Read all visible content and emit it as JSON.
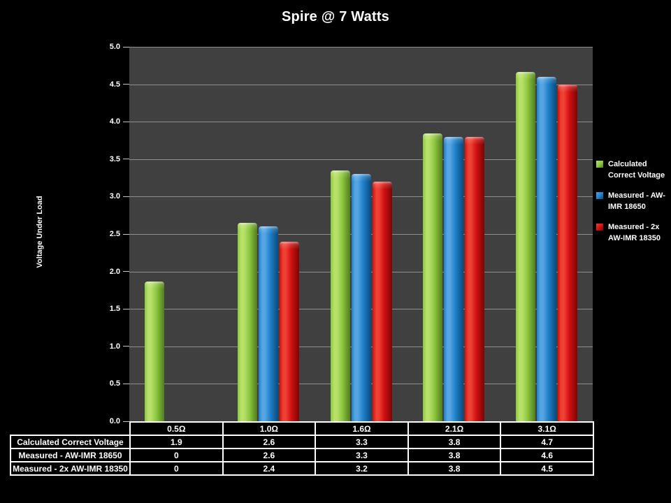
{
  "slide": {
    "title": "Spire @ 7 Watts"
  },
  "chart_data": {
    "type": "bar",
    "title": "Spire @ 7 Watts",
    "xlabel": "",
    "ylabel": "Voltage Under Load",
    "ylim": [
      0,
      5
    ],
    "ytick_step": 0.5,
    "ytick_labels": [
      "0.0",
      "0.5",
      "1.0",
      "1.5",
      "2.0",
      "2.5",
      "3.0",
      "3.5",
      "4.0",
      "4.5",
      "5.0"
    ],
    "grid": true,
    "legend_position": "right",
    "categories": [
      "0.5Ω",
      "1.0Ω",
      "1.6Ω",
      "2.1Ω",
      "3.1Ω"
    ],
    "series": [
      {
        "name": "Calculated Correct Voltage",
        "values": [
          1.87,
          2.65,
          3.35,
          3.84,
          4.66
        ],
        "color": {
          "light": "#b7e169",
          "mid": "#8cc63f",
          "dark": "#4f7d1b"
        }
      },
      {
        "name": "Measured - AW-IMR 18650",
        "values": [
          0,
          2.6,
          3.3,
          3.8,
          4.6
        ],
        "color": {
          "light": "#55a5e3",
          "mid": "#1e7fc8",
          "dark": "#0c4a7d"
        }
      },
      {
        "name": "Measured - 2x AW-IMR 18350",
        "values": [
          0,
          2.4,
          3.2,
          3.8,
          4.5
        ],
        "color": {
          "light": "#ee4033",
          "mid": "#cf1010",
          "dark": "#7c0404"
        }
      }
    ]
  },
  "table": {
    "header": [
      "0.5Ω",
      "1.0Ω",
      "1.6Ω",
      "2.1Ω",
      "3.1Ω"
    ],
    "rows": [
      {
        "label": "Calculated Correct Voltage",
        "values": [
          "1.9",
          "2.6",
          "3.3",
          "3.8",
          "4.7"
        ]
      },
      {
        "label": "Measured - AW-IMR 18650",
        "values": [
          "0",
          "2.6",
          "3.3",
          "3.8",
          "4.6"
        ]
      },
      {
        "label": "Measured - 2x AW-IMR 18350",
        "values": [
          "0",
          "2.4",
          "3.2",
          "3.8",
          "4.5"
        ]
      }
    ]
  },
  "colors": {
    "background": "#000000",
    "plot_background": "#404040",
    "gridline": "#c3c3c3",
    "text": "#ffffff",
    "table_border": "#ffffff"
  }
}
